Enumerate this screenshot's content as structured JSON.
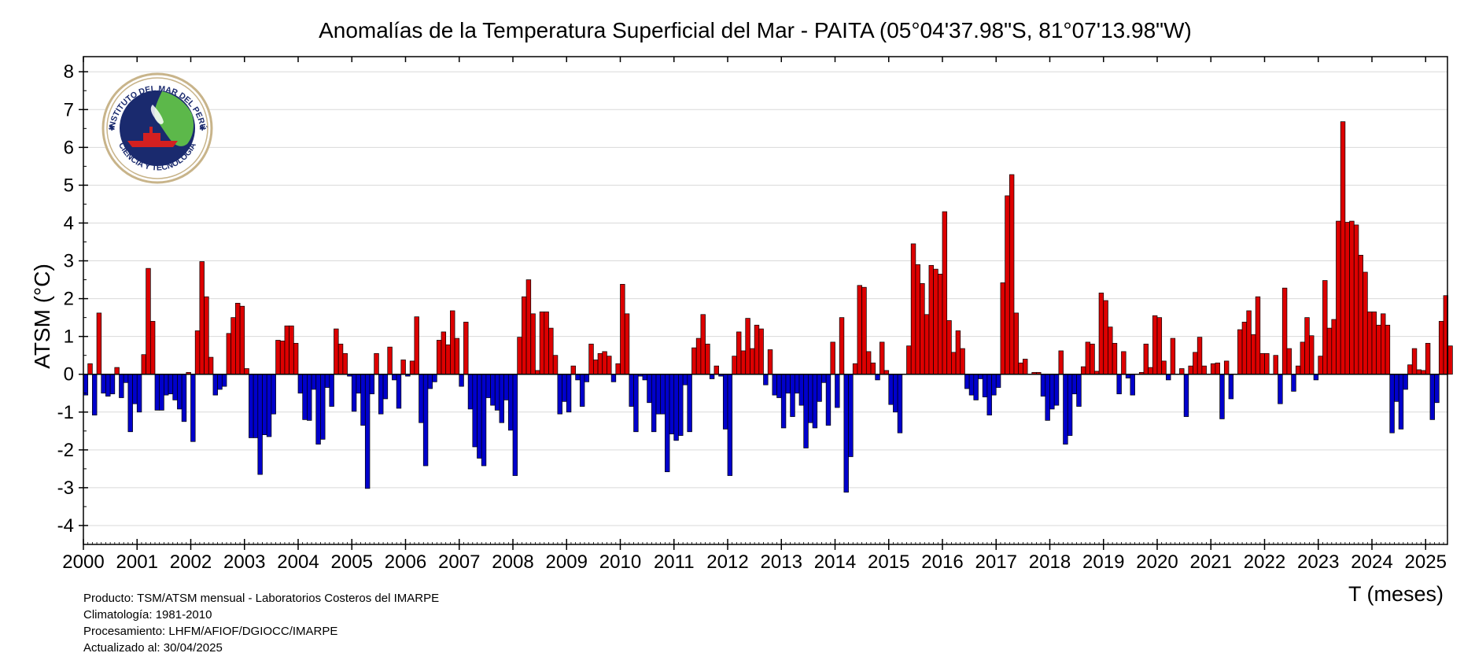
{
  "chart_data": {
    "type": "bar",
    "title": "Anomalías de la Temperatura Superficial del Mar - PAITA (05°04'37.98\"S, 81°07'13.98\"W)",
    "xlabel": "T (meses)",
    "ylabel": "ATSM (°C)",
    "ylim": [
      -4.5,
      8.4
    ],
    "yticks": [
      -4,
      -3,
      -2,
      -1,
      0,
      1,
      2,
      3,
      4,
      5,
      6,
      7,
      8
    ],
    "xticks": [
      "2000",
      "2001",
      "2002",
      "2003",
      "2004",
      "2005",
      "2006",
      "2007",
      "2008",
      "2009",
      "2010",
      "2011",
      "2012",
      "2013",
      "2014",
      "2015",
      "2016",
      "2017",
      "2018",
      "2019",
      "2020",
      "2021",
      "2022",
      "2023",
      "2024",
      "2025"
    ],
    "start": "2000-01",
    "grid": true,
    "colors": {
      "positive": "#dd0000",
      "negative": "#0000cc",
      "bar_stroke": "#000000",
      "grid": "#d9d9d9"
    },
    "values": [
      -0.55,
      0.28,
      -1.08,
      1.62,
      -0.5,
      -0.58,
      -0.52,
      0.18,
      -0.62,
      -0.22,
      -1.52,
      -0.78,
      -1.0,
      0.52,
      2.8,
      1.4,
      -0.95,
      -0.95,
      -0.55,
      -0.52,
      -0.68,
      -0.92,
      -1.25,
      0.05,
      -1.78,
      1.15,
      2.98,
      2.05,
      0.45,
      -0.55,
      -0.4,
      -0.32,
      1.08,
      1.5,
      1.88,
      1.8,
      0.15,
      -1.68,
      -1.68,
      -2.65,
      -1.6,
      -1.65,
      -1.05,
      0.9,
      0.88,
      1.28,
      1.28,
      0.82,
      -0.5,
      -1.2,
      -1.22,
      -0.4,
      -1.85,
      -1.72,
      -0.35,
      -0.85,
      1.2,
      0.8,
      0.55,
      -0.05,
      -0.98,
      -0.5,
      -1.35,
      -3.02,
      -0.52,
      0.55,
      -1.05,
      -0.65,
      0.72,
      -0.15,
      -0.9,
      0.38,
      -0.05,
      0.35,
      1.52,
      -1.28,
      -2.42,
      -0.38,
      -0.2,
      0.9,
      1.12,
      0.78,
      1.68,
      0.95,
      -0.32,
      1.38,
      -0.92,
      -1.92,
      -2.22,
      -2.42,
      -0.62,
      -0.82,
      -0.95,
      -1.28,
      -0.68,
      -1.48,
      -2.68,
      0.98,
      2.05,
      2.5,
      1.6,
      0.1,
      1.65,
      1.65,
      1.22,
      0.5,
      -1.05,
      -0.72,
      -1.0,
      0.22,
      -0.15,
      -0.85,
      -0.2,
      0.8,
      0.38,
      0.55,
      0.6,
      0.48,
      -0.2,
      0.28,
      2.38,
      1.6,
      -0.85,
      -1.52,
      -0.05,
      -0.15,
      -0.75,
      -1.52,
      -1.05,
      -1.05,
      -2.58,
      -1.58,
      -1.75,
      -1.62,
      -0.28,
      -1.52,
      0.7,
      0.95,
      1.58,
      0.8,
      -0.12,
      0.22,
      -0.05,
      -1.45,
      -2.68,
      0.48,
      1.12,
      0.62,
      1.48,
      0.68,
      1.3,
      1.2,
      -0.28,
      0.65,
      -0.55,
      -0.62,
      -1.42,
      -0.5,
      -1.12,
      -0.5,
      -0.82,
      -1.95,
      -1.28,
      -1.42,
      -0.72,
      -0.22,
      -1.35,
      0.85,
      -0.88,
      1.5,
      -3.12,
      -2.18,
      0.28,
      2.35,
      2.3,
      0.6,
      0.3,
      -0.15,
      0.85,
      0.1,
      -0.8,
      -1.0,
      -1.55,
      0.0,
      0.75,
      3.45,
      2.9,
      2.4,
      1.58,
      2.88,
      2.78,
      2.65,
      4.3,
      1.42,
      0.58,
      1.15,
      0.68,
      -0.38,
      -0.55,
      -0.68,
      -0.12,
      -0.6,
      -1.08,
      -0.55,
      -0.35,
      2.42,
      4.72,
      5.28,
      1.62,
      0.3,
      0.4,
      0.0,
      0.05,
      0.05,
      -0.58,
      -1.22,
      -0.92,
      -0.82,
      0.62,
      -1.85,
      -1.62,
      -0.52,
      -0.85,
      0.2,
      0.85,
      0.8,
      0.08,
      2.15,
      1.95,
      1.25,
      0.82,
      -0.52,
      0.6,
      -0.1,
      -0.55,
      0.0,
      0.05,
      0.8,
      0.18,
      1.55,
      1.5,
      0.35,
      -0.15,
      0.95,
      0.0,
      0.15,
      -1.12,
      0.22,
      0.58,
      0.98,
      0.22,
      0.0,
      0.28,
      0.3,
      -1.18,
      0.35,
      -0.65,
      0.0,
      1.18,
      1.38,
      1.68,
      1.05,
      2.05,
      0.55,
      0.55,
      0.0,
      0.5,
      -0.78,
      2.28,
      0.68,
      -0.45,
      0.22,
      0.85,
      1.5,
      1.02,
      -0.15,
      0.48,
      2.48,
      1.22,
      1.45,
      4.05,
      6.68,
      4.02,
      4.05,
      3.95,
      3.15,
      2.7,
      1.65,
      1.65,
      1.3,
      1.6,
      1.3,
      -1.55,
      -0.72,
      -1.45,
      -0.4,
      0.25,
      0.68,
      0.12,
      0.1,
      0.82,
      -1.2,
      -0.75,
      1.4,
      2.08,
      0.75
    ]
  },
  "footer": {
    "line1": "Producto: TSM/ATSM mensual - Laboratorios Costeros del IMARPE",
    "line2": "Climatología: 1981-2010",
    "line3": "Procesamiento: LHFM/AFIOF/DGIOCC/IMARPE",
    "line4": "Actualizado al: 30/04/2025"
  },
  "logo": {
    "text_top": "INSTITUTO DEL MAR DEL PERÚ",
    "text_bottom": "CIENCIA Y TECNOLOGÍA",
    "colors": {
      "ring": "#c8b48a",
      "ocean": "#1a2a6e",
      "land": "#5cb84a",
      "ship": "#d42020"
    }
  }
}
